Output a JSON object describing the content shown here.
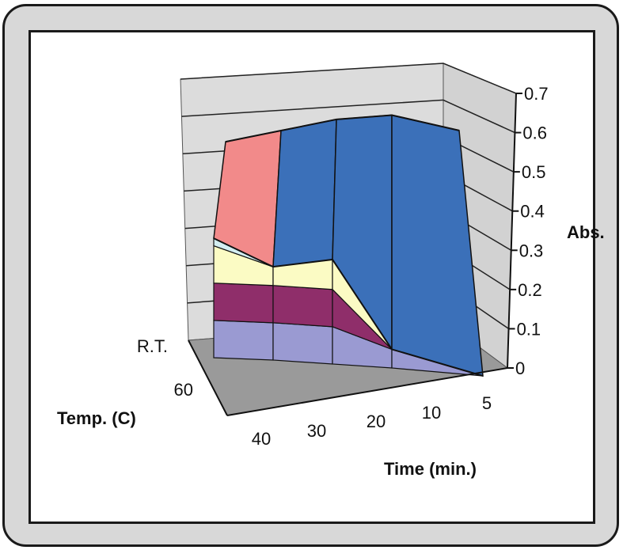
{
  "chart_data": {
    "type": "surface",
    "title": "",
    "zlabel": "Abs.",
    "xlabel": "Time (min.)",
    "ylabel": "Temp. (C)",
    "z_ticks": [
      "0",
      "0.1",
      "0.2",
      "0.3",
      "0.4",
      "0.5",
      "0.6",
      "0.7"
    ],
    "zlim": [
      0,
      0.7
    ],
    "time_categories": [
      "40",
      "30",
      "20",
      "10",
      "5"
    ],
    "temp_categories": [
      "R.T.",
      "60"
    ],
    "series": [
      {
        "name": "R.T.",
        "values": [
          0.57,
          0.59,
          0.61,
          0.61,
          0.55
        ]
      },
      {
        "name": "60",
        "values": [
          0.32,
          0.25,
          0.28,
          0.05,
          0.0
        ]
      }
    ],
    "band_colors": [
      "#9a9ad2",
      "#8f2e6a",
      "#fbfbc4",
      "#d3eef2",
      "#6b1d6f",
      "#f28a8a",
      "#3b70b9"
    ],
    "grid": true
  }
}
